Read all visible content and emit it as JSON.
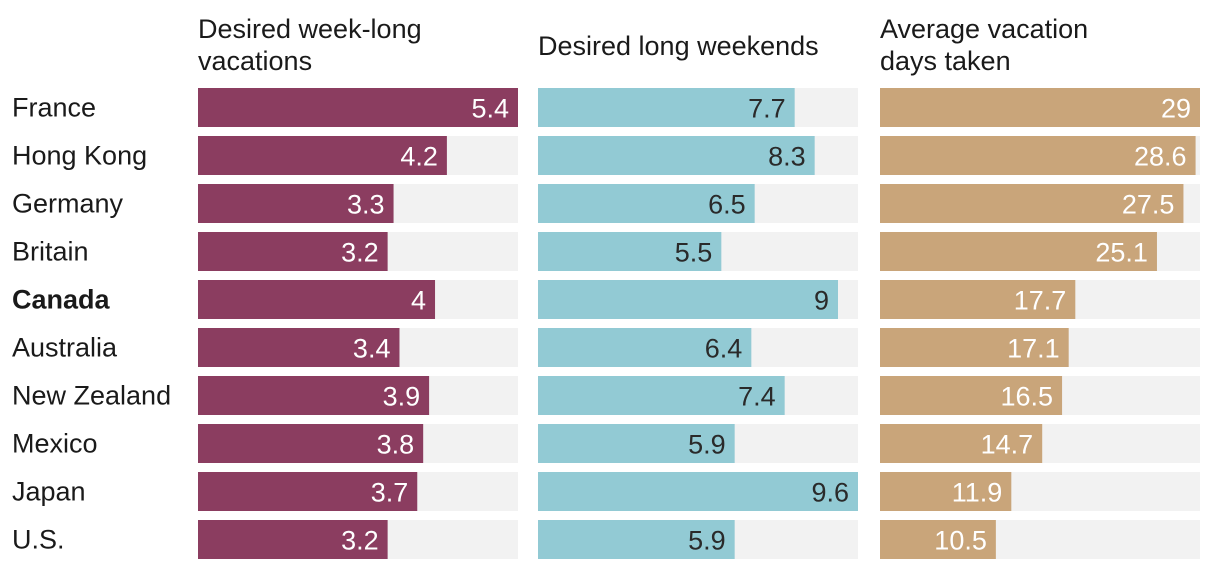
{
  "chart_data": {
    "type": "bar",
    "orientation": "horizontal",
    "grid": false,
    "legend": "none",
    "categories": [
      "France",
      "Hong Kong",
      "Germany",
      "Britain",
      "Canada",
      "Australia",
      "New Zealand",
      "Mexico",
      "Japan",
      "U.S."
    ],
    "highlight_category": "Canada",
    "series": [
      {
        "name": "Desired week-long vacations",
        "title_lines": [
          "Desired week-long vacations"
        ],
        "values": [
          5.4,
          4.2,
          3.3,
          3.2,
          4,
          3.4,
          3.9,
          3.8,
          3.7,
          3.2
        ],
        "labels": [
          "5.4",
          "4.2",
          "3.3",
          "3.2",
          "4",
          "3.4",
          "3.9",
          "3.8",
          "3.7",
          "3.2"
        ],
        "xlim": [
          0,
          5.4
        ],
        "color": "#8b3d60",
        "label_color": "#ffffff"
      },
      {
        "name": "Desired long weekends",
        "title_lines": [
          "Desired long weekends"
        ],
        "values": [
          7.7,
          8.3,
          6.5,
          5.5,
          9,
          6.4,
          7.4,
          5.9,
          9.6,
          5.9
        ],
        "labels": [
          "7.7",
          "8.3",
          "6.5",
          "5.5",
          "9",
          "6.4",
          "7.4",
          "5.9",
          "9.6",
          "5.9"
        ],
        "xlim": [
          0,
          9.6
        ],
        "color": "#92cad4",
        "label_color": "#2a2a2a"
      },
      {
        "name": "Average vacation days taken",
        "title_lines": [
          "Average vacation days taken"
        ],
        "values": [
          29,
          28.6,
          27.5,
          25.1,
          17.7,
          17.1,
          16.5,
          14.7,
          11.9,
          10.5
        ],
        "labels": [
          "29",
          "28.6",
          "27.5",
          "25.1",
          "17.7",
          "17.1",
          "16.5",
          "14.7",
          "11.9",
          "10.5"
        ],
        "xlim": [
          0,
          29
        ],
        "color": "#c9a57a",
        "label_color": "#ffffff"
      }
    ],
    "colors": {
      "track": "#f2f2f2",
      "text": "#1a1a1a"
    }
  }
}
